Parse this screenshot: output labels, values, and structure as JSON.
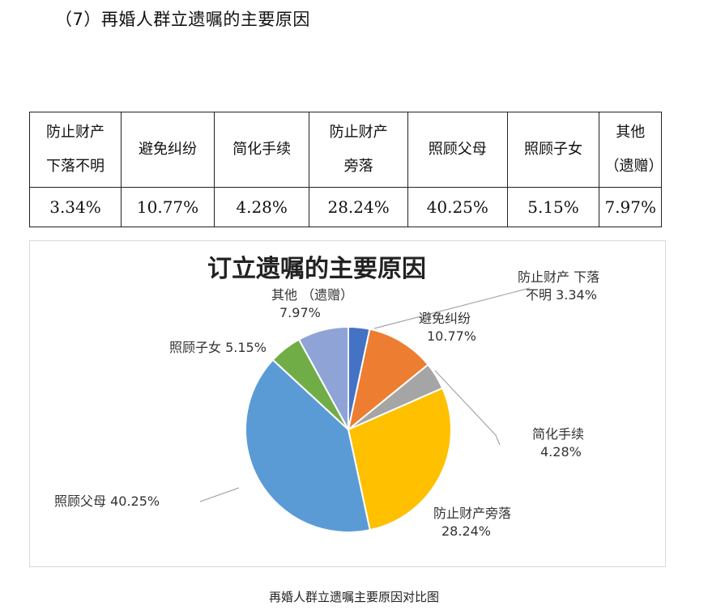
{
  "heading": "（7）再婚人群立遗嘱的主要原因",
  "table": {
    "headers": [
      [
        "防止财产",
        "下落不明"
      ],
      [
        "避免纠纷"
      ],
      [
        "简化手续"
      ],
      [
        "防止财产",
        "旁落"
      ],
      [
        "照顾父母"
      ],
      [
        "照顾子女"
      ],
      [
        "其他",
        "（遗赠）"
      ]
    ],
    "values": [
      "3.34%",
      "10.77%",
      "4.28%",
      "28.24%",
      "40.25%",
      "5.15%",
      "7.97%"
    ]
  },
  "chart_data": {
    "type": "pie",
    "title": "订立遗嘱的主要原因",
    "slices": [
      {
        "name": "防止财产 下落不明",
        "value": 3.34,
        "label_lines": [
          "防止财产  下落",
          "不明  3.34%"
        ],
        "color": "#4472c4"
      },
      {
        "name": "避免纠纷",
        "value": 10.77,
        "label_lines": [
          "避免纠纷",
          "10.77%"
        ],
        "color": "#ed7d31"
      },
      {
        "name": "简化手续",
        "value": 4.28,
        "label_lines": [
          "简化手续",
          "4.28%"
        ],
        "color": "#a5a5a5"
      },
      {
        "name": "防止财产旁落",
        "value": 28.24,
        "label_lines": [
          "防止财产旁落",
          "28.24%"
        ],
        "color": "#ffc000"
      },
      {
        "name": "照顾父母",
        "value": 40.25,
        "label_lines": [
          "照顾父母  40.25%"
        ],
        "color": "#5b9bd5"
      },
      {
        "name": "照顾子女",
        "value": 5.15,
        "label_lines": [
          "照顾子女  5.15%"
        ],
        "color": "#70ad47"
      },
      {
        "name": "其他 （遗赠）",
        "value": 7.97,
        "label_lines": [
          "其他  （遗赠）",
          "7.97%"
        ],
        "color": "#8fa3d6"
      }
    ],
    "start": "12 o'clock",
    "direction": "clockwise",
    "legend": "none"
  },
  "caption": "再婚人群立遗嘱主要原因对比图"
}
